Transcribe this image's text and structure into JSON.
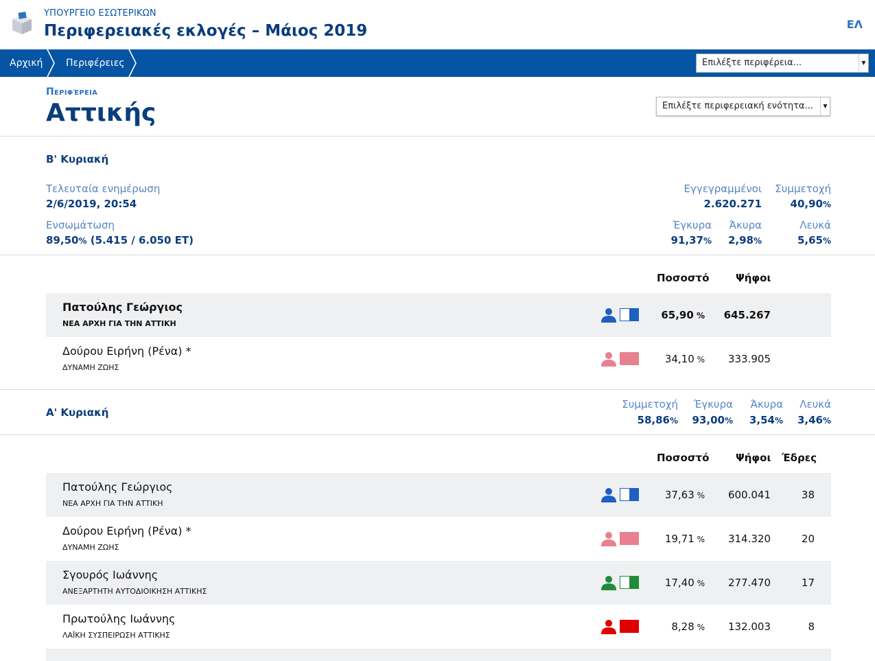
{
  "header": {
    "ministry": "ΥΠΟΥΡΓΕΙΟ ΕΣΩΤΕΡΙΚΩΝ",
    "title": "Περιφερειακές εκλογές – Μάιος 2019",
    "language": "ΕΛ"
  },
  "nav": {
    "breadcrumbs": [
      "Αρχική",
      "Περιφέρειες"
    ],
    "region_select_placeholder": "Επιλέξτε περιφέρεια..."
  },
  "region": {
    "label": "Περιφέρεια",
    "name": "Αττικής",
    "unit_select_placeholder": "Επιλέξτε περιφερειακή ενότητα..."
  },
  "round2": {
    "title": "Β' Κυριακή",
    "last_update_label": "Τελευταία ενημέρωση",
    "last_update_value": "2/6/2019, 20:54",
    "integration_label": "Ενσωμάτωση",
    "integration_value": "89,50",
    "integration_detail": "(5.415 / 6.050 ΕΤ)",
    "registered_label": "Εγγεγραμμένοι",
    "registered_value": "2.620.271",
    "turnout_label": "Συμμετοχή",
    "turnout_value": "40,90",
    "valid_label": "Έγκυρα",
    "valid_value": "91,37",
    "invalid_label": "Άκυρα",
    "invalid_value": "2,98",
    "blank_label": "Λευκά",
    "blank_value": "5,65",
    "col_percent": "Ποσοστό",
    "col_votes": "Ψήφοι",
    "candidates": [
      {
        "name": "Πατούλης Γεώργιος",
        "party": "ΝΕΑ ΑΡΧΗ ΓΙΑ ΤΗΝ ΑΤΤΙΚΗ",
        "percent": "65,90",
        "votes": "645.267",
        "color": "#1f5fc4"
      },
      {
        "name": "Δούρου Ειρήνη (Ρένα) *",
        "party": "ΔΥΝΑΜΗ ΖΩΗΣ",
        "percent": "34,10",
        "votes": "333.905",
        "color": "#e8818f"
      }
    ]
  },
  "round1": {
    "title": "Α' Κυριακή",
    "turnout_label": "Συμμετοχή",
    "turnout_value": "58,86",
    "valid_label": "Έγκυρα",
    "valid_value": "93,00",
    "invalid_label": "Άκυρα",
    "invalid_value": "3,54",
    "blank_label": "Λευκά",
    "blank_value": "3,46",
    "col_percent": "Ποσοστό",
    "col_votes": "Ψήφοι",
    "col_seats": "Έδρες",
    "candidates": [
      {
        "name": "Πατούλης Γεώργιος",
        "party": "ΝΕΑ ΑΡΧΗ ΓΙΑ ΤΗΝ ΑΤΤΙΚΗ",
        "percent": "37,63",
        "votes": "600.041",
        "seats": "38",
        "color": "#1f5fc4"
      },
      {
        "name": "Δούρου Ειρήνη (Ρένα) *",
        "party": "ΔΥΝΑΜΗ ΖΩΗΣ",
        "percent": "19,71",
        "votes": "314.320",
        "seats": "20",
        "color": "#e8818f"
      },
      {
        "name": "Σγουρός Ιωάννης",
        "party": "ΑΝΕΞΑΡΤΗΤΗ ΑΥΤΟΔΙΟΙΚΗΣΗ ΑΤΤΙΚΗΣ",
        "percent": "17,40",
        "votes": "277.470",
        "seats": "17",
        "color": "#1e8c3a"
      },
      {
        "name": "Πρωτούλης Ιωάννης",
        "party": "ΛΑΪΚΗ ΣΥΣΠΕΙΡΩΣΗ ΑΤΤΙΚΗΣ",
        "percent": "8,28",
        "votes": "132.003",
        "seats": "8",
        "color": "#e00000"
      }
    ]
  },
  "units": {
    "percent": "%"
  }
}
